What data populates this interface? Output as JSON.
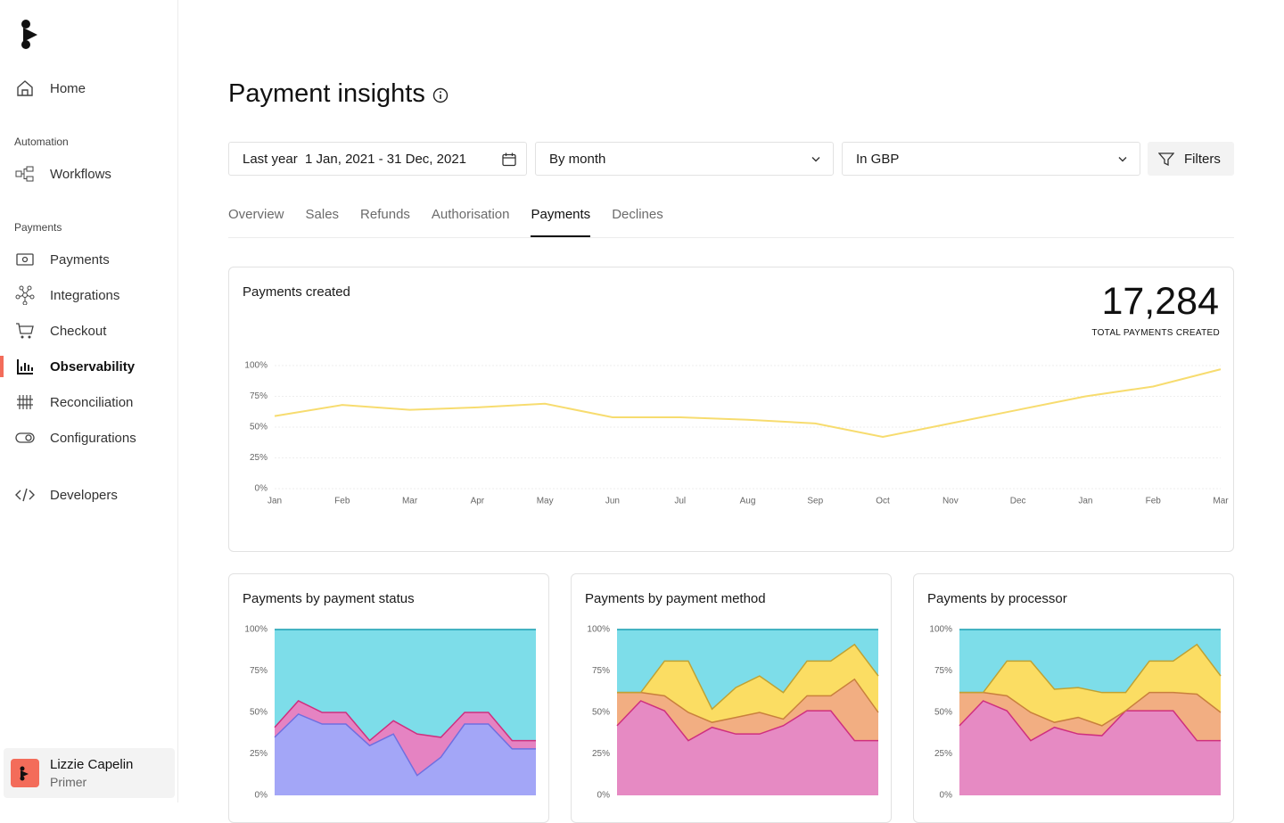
{
  "sidebar": {
    "home": "Home",
    "sections": [
      {
        "title": "Automation",
        "items": [
          {
            "label": "Workflows"
          }
        ]
      },
      {
        "title": "Payments",
        "items": [
          {
            "label": "Payments"
          },
          {
            "label": "Integrations"
          },
          {
            "label": "Checkout"
          },
          {
            "label": "Observability",
            "active": true
          },
          {
            "label": "Reconciliation"
          },
          {
            "label": "Configurations"
          }
        ]
      }
    ],
    "developers": "Developers",
    "user": {
      "name": "Lizzie Capelin",
      "org": "Primer"
    }
  },
  "header": {
    "title": "Payment insights",
    "date_preset": "Last year",
    "date_range": "1 Jan, 2021 - 31 Dec, 2021",
    "grouping": "By month",
    "currency": "In GBP",
    "filters": "Filters"
  },
  "tabs": [
    {
      "label": "Overview"
    },
    {
      "label": "Sales"
    },
    {
      "label": "Refunds"
    },
    {
      "label": "Authorisation"
    },
    {
      "label": "Payments",
      "active": true
    },
    {
      "label": "Declines"
    }
  ],
  "chart_data": [
    {
      "type": "line",
      "title": "Payments created",
      "kpi_value": "17,284",
      "kpi_caption": "TOTAL PAYMENTS CREATED",
      "categories": [
        "Jan",
        "Feb",
        "Mar",
        "Apr",
        "May",
        "Jun",
        "Jul",
        "Aug",
        "Sep",
        "Oct",
        "Nov",
        "Dec",
        "Jan",
        "Feb",
        "Mar"
      ],
      "series": [
        {
          "color": "#f7dc6f",
          "values": [
            59,
            68,
            64,
            66,
            69,
            58,
            58,
            56,
            53,
            42,
            53,
            64,
            75,
            83,
            97
          ]
        }
      ],
      "ylim": [
        0,
        100
      ],
      "yticks": [
        {
          "value": 0,
          "label": "0%"
        },
        {
          "value": 25,
          "label": "25%"
        },
        {
          "value": 50,
          "label": "50%"
        },
        {
          "value": 75,
          "label": "75%"
        },
        {
          "value": 100,
          "label": "100%"
        }
      ],
      "grid": true
    },
    {
      "type": "area",
      "stacked": true,
      "title": "Payments by payment status",
      "series": [
        {
          "color": "#a3a6f7",
          "stroke": "#6f6fe0",
          "values": [
            35,
            49,
            43,
            43,
            30,
            37,
            12,
            23,
            43,
            43,
            28,
            28
          ]
        },
        {
          "color": "#e583c2",
          "stroke": "#cf2f7f",
          "values": [
            6,
            8,
            7,
            7,
            3,
            8,
            25,
            12,
            7,
            7,
            5,
            5
          ]
        },
        {
          "color": "#7ddde9",
          "stroke": "#1a9fb2",
          "values": [
            59,
            43,
            50,
            50,
            67,
            55,
            63,
            65,
            50,
            50,
            67,
            67
          ]
        }
      ],
      "ylim": [
        0,
        100
      ],
      "yticks": [
        {
          "value": 0,
          "label": "0%"
        },
        {
          "value": 25,
          "label": "25%"
        },
        {
          "value": 50,
          "label": "50%"
        },
        {
          "value": 75,
          "label": "75%"
        },
        {
          "value": 100,
          "label": "100%"
        }
      ],
      "grid": false
    },
    {
      "type": "area",
      "stacked": true,
      "title": "Payments by payment method",
      "series": [
        {
          "color": "#e68ac3",
          "stroke": "#cf2f7f",
          "values": [
            42,
            57,
            51,
            33,
            41,
            37,
            37,
            42,
            51,
            51,
            33,
            33
          ]
        },
        {
          "color": "#f2ae82",
          "stroke": "#c9803d",
          "values": [
            20,
            5,
            9,
            17,
            3,
            10,
            13,
            4,
            9,
            9,
            37,
            17
          ]
        },
        {
          "color": "#fbdd63",
          "stroke": "#bfa233",
          "values": [
            0,
            0,
            21,
            31,
            8,
            18,
            22,
            16,
            21,
            21,
            21,
            22
          ]
        },
        {
          "color": "#7ddde9",
          "stroke": "#1a9fb2",
          "values": [
            38,
            38,
            19,
            19,
            48,
            35,
            28,
            38,
            19,
            19,
            9,
            28
          ]
        }
      ],
      "ylim": [
        0,
        100
      ],
      "yticks": [
        {
          "value": 0,
          "label": "0%"
        },
        {
          "value": 25,
          "label": "25%"
        },
        {
          "value": 50,
          "label": "50%"
        },
        {
          "value": 75,
          "label": "75%"
        },
        {
          "value": 100,
          "label": "100%"
        }
      ],
      "grid": false
    },
    {
      "type": "area",
      "stacked": true,
      "title": "Payments by processor",
      "series": [
        {
          "color": "#e68ac3",
          "stroke": "#cf2f7f",
          "values": [
            42,
            57,
            51,
            33,
            41,
            37,
            36,
            51,
            51,
            51,
            33,
            33
          ]
        },
        {
          "color": "#f2ae82",
          "stroke": "#c9803d",
          "values": [
            20,
            5,
            9,
            17,
            3,
            10,
            6,
            0,
            11,
            11,
            28,
            17
          ]
        },
        {
          "color": "#fbdd63",
          "stroke": "#bfa233",
          "values": [
            0,
            0,
            21,
            31,
            20,
            18,
            20,
            11,
            19,
            19,
            30,
            22
          ]
        },
        {
          "color": "#7ddde9",
          "stroke": "#1a9fb2",
          "values": [
            38,
            38,
            19,
            19,
            36,
            35,
            38,
            38,
            19,
            19,
            9,
            28
          ]
        }
      ],
      "ylim": [
        0,
        100
      ],
      "yticks": [
        {
          "value": 0,
          "label": "0%"
        },
        {
          "value": 25,
          "label": "25%"
        },
        {
          "value": 50,
          "label": "50%"
        },
        {
          "value": 75,
          "label": "75%"
        },
        {
          "value": 100,
          "label": "100%"
        }
      ],
      "grid": false
    }
  ]
}
